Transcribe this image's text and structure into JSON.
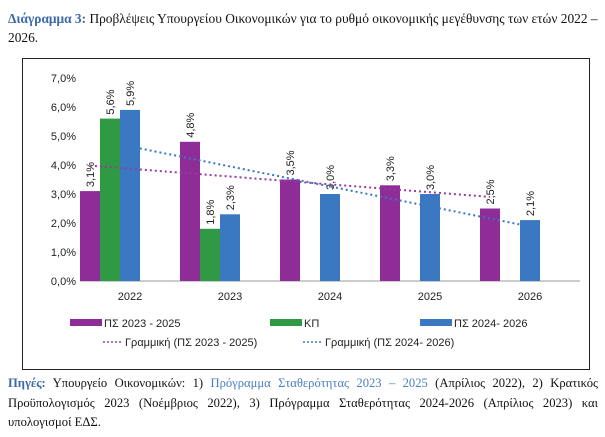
{
  "caption": {
    "label": "Διάγραμμα 3:",
    "text": " Προβλέψεις Υπουργείου Οικονομικών για το ρυθμό οικονομικής μεγέθυνσης των ετών 2022 – 2026."
  },
  "chart_data": {
    "type": "bar",
    "categories": [
      "2022",
      "2023",
      "2024",
      "2025",
      "2026"
    ],
    "ylim": [
      0,
      7
    ],
    "yticks": [
      "0,0%",
      "1,0%",
      "2,0%",
      "3,0%",
      "4,0%",
      "5,0%",
      "6,0%",
      "7,0%"
    ],
    "grid": false,
    "legend_placement": "bottom",
    "series": [
      {
        "name": "ΠΣ 2023 - 2025",
        "color": "#8e2c98",
        "values": [
          3.1,
          4.8,
          3.5,
          3.3,
          2.5
        ],
        "labels": [
          "3,1%",
          "4,8%",
          "3,5%",
          "3,3%",
          "2,5%"
        ]
      },
      {
        "name": "ΚΠ",
        "color": "#2f9a43",
        "values": [
          5.6,
          1.8,
          null,
          null,
          null
        ],
        "labels": [
          "5,6%",
          "1,8%",
          null,
          null,
          null
        ]
      },
      {
        "name": "ΠΣ 2024- 2026",
        "color": "#3a78c2",
        "values": [
          5.9,
          2.3,
          3.0,
          3.0,
          2.1
        ],
        "labels": [
          "5,9%",
          "2,3%",
          "3,0%",
          "3,0%",
          "2,1%"
        ]
      }
    ],
    "trendlines": [
      {
        "name": "Γραμμική (ΠΣ 2023 - 2025)",
        "of_series": 0,
        "color": "#9b3aa3",
        "style": "dotted"
      },
      {
        "name": "Γραμμική (ΠΣ 2024- 2026)",
        "of_series": 2,
        "color": "#3a78c2",
        "style": "dotted"
      }
    ]
  },
  "sources": {
    "label": "Πηγές:",
    "pre": " Υπουργείο Οικονομικών: 1) ",
    "link": "Πρόγραμμα Σταθερότητας 2023 – 2025",
    "post": " (Απρίλιος 2022), 2) Κρατικός Προϋπολογισμός 2023 (Νοέμβριος 2022), 3) Πρόγραμμα Σταθερότητας 2024-2026 (Απρίλιος 2023) και υπολογισμοί ΕΔΣ."
  }
}
